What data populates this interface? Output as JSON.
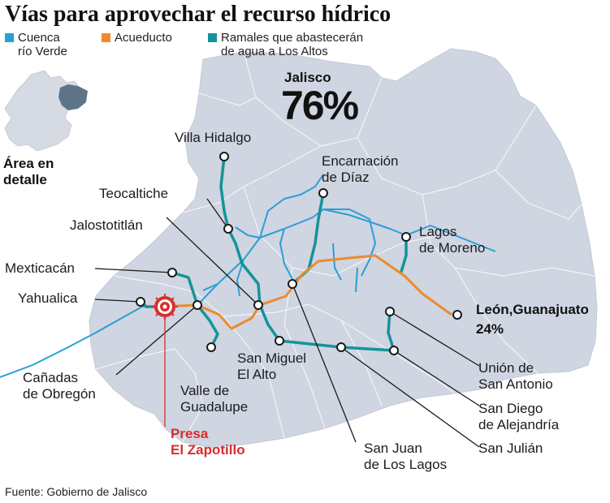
{
  "title": "Vías para aprovechar el recurso hídrico",
  "legend": [
    {
      "label": "Cuenca\nrío Verde",
      "color": "#2a9fd6"
    },
    {
      "label": "Acueducto",
      "color": "#ee8a2c"
    },
    {
      "label": "Ramales que abastecerán\nde agua a Los Altos",
      "color": "#14939a"
    }
  ],
  "inset": {
    "label": "Área en\ndetalle"
  },
  "shares": {
    "jalisco_label": "Jalisco",
    "jalisco_value": "76%",
    "leon_label": "León,Guanajuato",
    "leon_value": "24%"
  },
  "places": {
    "villa_hidalgo": "Villa Hidalgo",
    "encarnacion": "Encarnación\nde Díaz",
    "teocaltiche": "Teocaltiche",
    "jalostotitlan": "Jalostotitlán",
    "lagos": "Lagos\nde Moreno",
    "mexticacan": "Mexticacán",
    "yahualica": "Yahualica",
    "canadas": "Cañadas\nde Obregón",
    "valle": "Valle de\nGuadalupe",
    "san_miguel": "San Miguel\nEl Alto",
    "union": "Unión de\nSan Antonio",
    "san_diego": "San Diego\nde Alejandría",
    "san_julian": "San Julián",
    "san_juan": "San Juan\nde Los Lagos"
  },
  "presa": "Presa\nEl Zapotillo",
  "source": "Fuente: Gobierno de Jalisco",
  "colors": {
    "land": "#cfd5e1",
    "inset_state": "#d6dbe3",
    "inset_highlight": "#5d7489",
    "leader": "#1a1a1a",
    "dam": "#d62f2f"
  }
}
